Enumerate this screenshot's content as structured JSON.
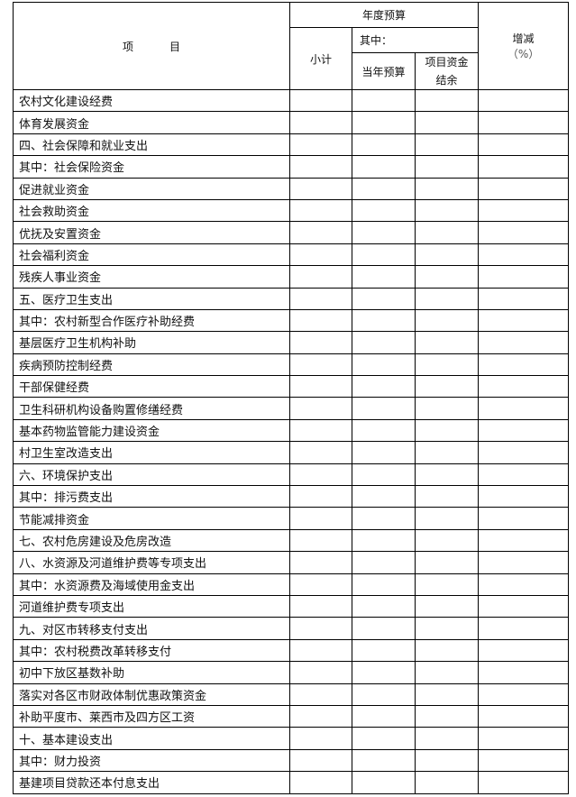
{
  "table": {
    "header": {
      "item": "项目",
      "annual_budget": "年度预算",
      "subtotal": "小计",
      "of_which": "其中：",
      "current_budget": "当年预算",
      "carryover": "项目资金结余",
      "change": "增减",
      "change_unit": "（%）"
    },
    "rows": [
      "农村文化建设经费",
      "体育发展资金",
      "四、社会保障和就业支出",
      "其中：社会保险资金",
      "促进就业资金",
      "社会救助资金",
      "优抚及安置资金",
      "社会福利资金",
      "残疾人事业资金",
      "五、医疗卫生支出",
      "其中：农村新型合作医疗补助经费",
      "基层医疗卫生机构补助",
      "疾病预防控制经费",
      "干部保健经费",
      "卫生科研机构设备购置修缮经费",
      "基本药物监管能力建设资金",
      "村卫生室改造支出",
      "六、环境保护支出",
      "其中：排污费支出",
      "节能减排资金",
      "七、农村危房建设及危房改造",
      "八、水资源及河道维护费等专项支出",
      "其中：水资源费及海域使用金支出",
      "河道维护费专项支出",
      "九、对区市转移支付支出",
      "其中：农村税费改革转移支付",
      "初中下放区基数补助",
      "落实对各区市财政体制优惠政策资金",
      "补助平度市、莱西市及四方区工资",
      "十、基本建设支出",
      "其中：财力投资",
      "基建项目贷款还本付息支出"
    ]
  }
}
